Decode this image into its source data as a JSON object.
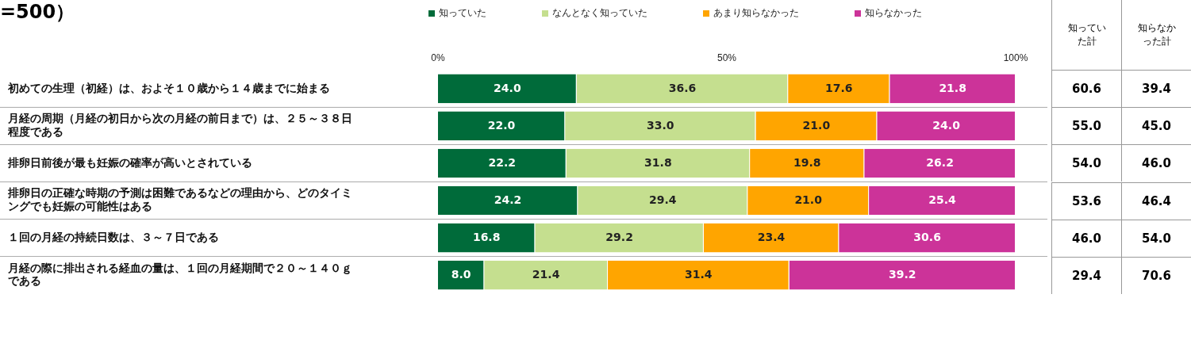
{
  "chart_data": {
    "type": "bar",
    "orientation": "horizontal",
    "stacked": true,
    "title": "=500）",
    "categories": [
      "初めての生理（初経）は、およそ１０歳から１４歳までに始まる",
      "月経の周期（月経の初日から次の月経の前日まで）は、２５～３８日程度である",
      "排卵日前後が最も妊娠の確率が高いとされている",
      "排卵日の正確な時期の予測は困難であるなどの理由から、どのタイミングでも妊娠の可能性はある",
      "１回の月経の持続日数は、３～７日である",
      "月経の際に排出される経血の量は、１回の月経期間で２０～１４０ｇである"
    ],
    "series": [
      {
        "name": "知っていた",
        "color": "#006b3a",
        "values": [
          24.0,
          22.0,
          22.2,
          24.2,
          16.8,
          8.0
        ],
        "value_labels": [
          "24.0",
          "22.0",
          "22.2",
          "24.2",
          "16.8",
          "8.0"
        ]
      },
      {
        "name": "なんとなく知っていた",
        "color": "#c5df8f",
        "values": [
          36.6,
          33.0,
          31.8,
          29.4,
          29.2,
          21.4
        ],
        "value_labels": [
          "36.6",
          "33.0",
          "31.8",
          "29.4",
          "29.2",
          "21.4"
        ]
      },
      {
        "name": "あまり知らなかった",
        "color": "#ffa500",
        "values": [
          17.6,
          21.0,
          19.8,
          21.0,
          23.4,
          31.4
        ],
        "value_labels": [
          "17.6",
          "21.0",
          "19.8",
          "21.0",
          "23.4",
          "31.4"
        ]
      },
      {
        "name": "知らなかった",
        "color": "#cc3399",
        "values": [
          21.8,
          24.0,
          26.2,
          25.4,
          30.6,
          39.2
        ],
        "value_labels": [
          "21.8",
          "24.0",
          "26.2",
          "25.4",
          "30.6",
          "39.2"
        ]
      }
    ],
    "xlim": [
      0,
      100
    ],
    "xticks": [
      {
        "value": 0,
        "label": "0%"
      },
      {
        "value": 50,
        "label": "50%"
      },
      {
        "value": 100,
        "label": "100%"
      }
    ],
    "legend": "top",
    "grid": false,
    "annotations": [
      "知っていた計",
      "知らなかった計",
      "60.6",
      "39.4",
      "55.0",
      "45.0",
      "54.0",
      "46.0",
      "53.6",
      "46.4",
      "46.0",
      "54.0",
      "29.4",
      "70.6"
    ]
  }
}
